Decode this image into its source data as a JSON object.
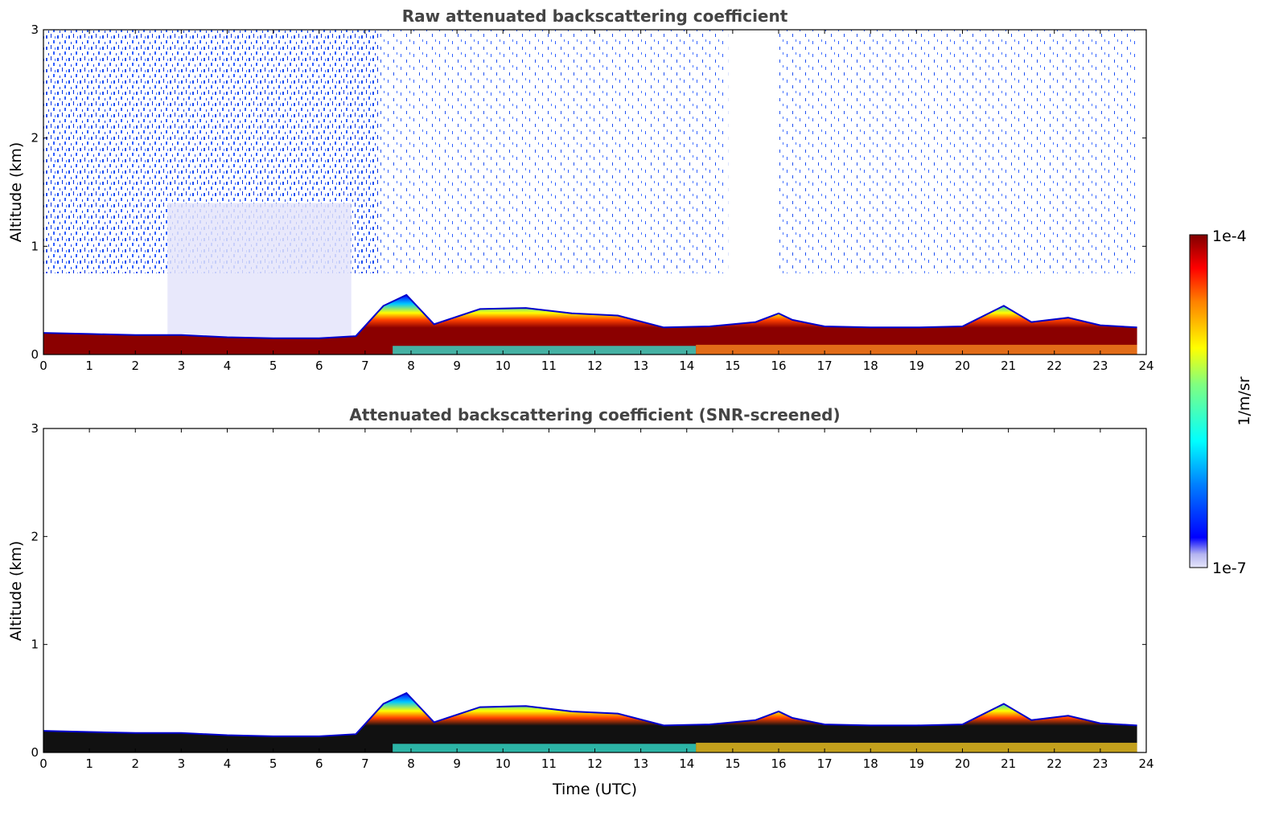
{
  "chart_data": [
    {
      "type": "heatmap",
      "title": "Raw attenuated backscattering coefficient",
      "xlabel": "",
      "ylabel": "Altitude (km)",
      "xlim": [
        0,
        24
      ],
      "ylim": [
        0,
        3
      ],
      "xticks": [
        "0",
        "1",
        "2",
        "3",
        "4",
        "5",
        "6",
        "7",
        "8",
        "9",
        "10",
        "11",
        "12",
        "13",
        "14",
        "15",
        "16",
        "17",
        "18",
        "19",
        "20",
        "21",
        "22",
        "23",
        "24"
      ],
      "yticks": [
        "0",
        "1",
        "2",
        "3"
      ],
      "x_units": "hours UTC",
      "y_units": "km",
      "boundary_layer_top_km": {
        "time": [
          0,
          1,
          2,
          3,
          4,
          5,
          6,
          6.8,
          7.4,
          7.9,
          8.5,
          9.5,
          10.5,
          11.5,
          12.5,
          13.5,
          14.5,
          15.5,
          16,
          16.3,
          17,
          18,
          19,
          20,
          20.9,
          21.5,
          22.3,
          23,
          23.8
        ],
        "height": [
          0.2,
          0.19,
          0.18,
          0.18,
          0.16,
          0.15,
          0.15,
          0.17,
          0.45,
          0.55,
          0.28,
          0.42,
          0.43,
          0.38,
          0.36,
          0.25,
          0.26,
          0.3,
          0.38,
          0.32,
          0.26,
          0.25,
          0.25,
          0.26,
          0.45,
          0.3,
          0.34,
          0.27,
          0.25
        ]
      },
      "noise_regions": [
        {
          "t_start": 0,
          "t_end": 7.3,
          "density": "high"
        },
        {
          "t_start": 7.3,
          "t_end": 13.0,
          "density": "medium"
        },
        {
          "t_start": 13.0,
          "t_end": 14.9,
          "density": "medium"
        },
        {
          "t_start": 16.0,
          "t_end": 23.8,
          "density": "medium"
        }
      ]
    },
    {
      "type": "heatmap",
      "title": "Attenuated backscattering coefficient (SNR-screened)",
      "xlabel": "Time (UTC)",
      "ylabel": "Altitude (km)",
      "xlim": [
        0,
        24
      ],
      "ylim": [
        0,
        3
      ],
      "xticks": [
        "0",
        "1",
        "2",
        "3",
        "4",
        "5",
        "6",
        "7",
        "8",
        "9",
        "10",
        "11",
        "12",
        "13",
        "14",
        "15",
        "16",
        "17",
        "18",
        "19",
        "20",
        "21",
        "22",
        "23",
        "24"
      ],
      "yticks": [
        "0",
        "1",
        "2",
        "3"
      ],
      "x_units": "hours UTC",
      "y_units": "km",
      "screened": true
    }
  ],
  "colorbar": {
    "label": "1/m/sr",
    "min_label": "1e-7",
    "max_label": "1e-4",
    "colormap": "jet",
    "scale": "log"
  }
}
